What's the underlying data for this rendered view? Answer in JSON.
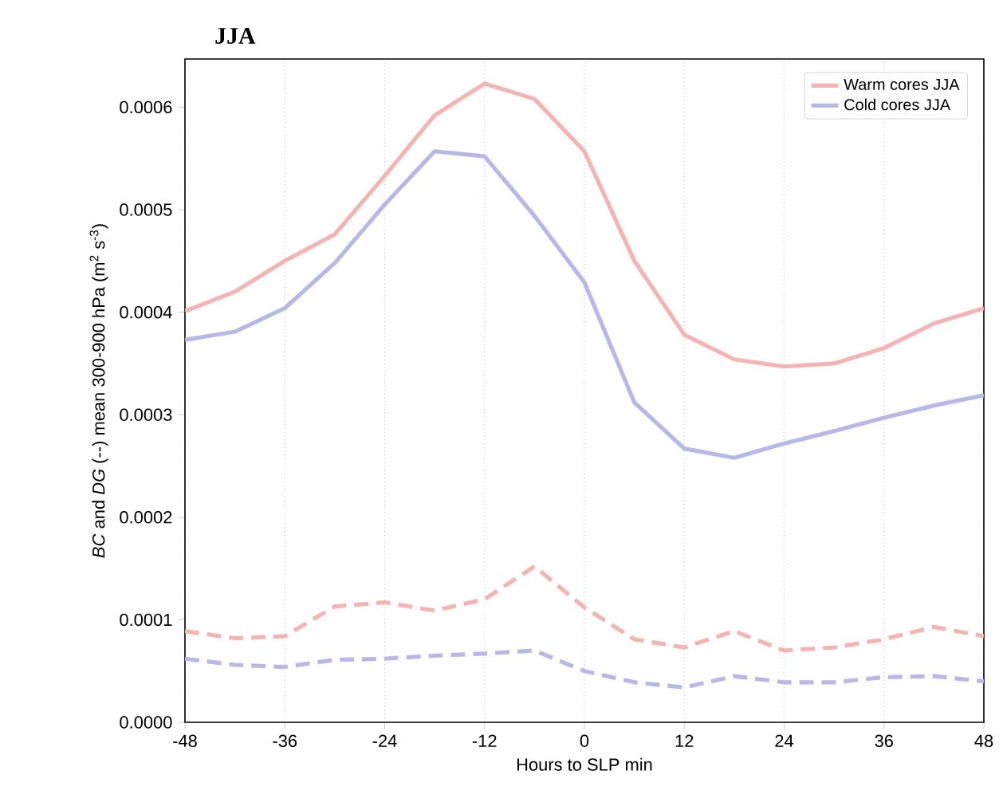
{
  "chart_data": {
    "type": "line",
    "title": "JJA",
    "xlabel": "Hours to SLP min",
    "ylabel": "*BC* and *DG* (--) mean 300-900 hPa (m$^{2}$ s$^{-3}$)",
    "x": [
      -48,
      -42,
      -36,
      -30,
      -24,
      -18,
      -12,
      -6,
      0,
      6,
      12,
      18,
      24,
      30,
      36,
      42,
      48
    ],
    "series": [
      {
        "name": "Warm cores JJA",
        "color": "#f4b4b4",
        "line_style": "solid",
        "values": [
          0.000401,
          0.00042,
          0.00045,
          0.000476,
          0.000533,
          0.000592,
          0.000623,
          0.000608,
          0.000557,
          0.00045,
          0.000378,
          0.000354,
          0.000347,
          0.00035,
          0.000365,
          0.000389,
          0.000404
        ]
      },
      {
        "name": "Cold cores JJA",
        "color": "#b8b8e8",
        "line_style": "solid",
        "values": [
          0.000373,
          0.000381,
          0.000404,
          0.000448,
          0.000505,
          0.000557,
          0.000552,
          0.000494,
          0.000429,
          0.000312,
          0.000267,
          0.000258,
          0.000272,
          0.000284,
          0.000297,
          0.000309,
          0.000319
        ]
      },
      {
        "color": "#f4b4b4",
        "line_style": "dashed",
        "values": [
          8.9e-05,
          8.2e-05,
          8.4e-05,
          0.000113,
          0.000117,
          0.000109,
          0.00012,
          0.000152,
          0.000112,
          8.1e-05,
          7.3e-05,
          8.9e-05,
          7e-05,
          7.3e-05,
          8.1e-05,
          9.3e-05,
          8.4e-05
        ]
      },
      {
        "color": "#b8b8e8",
        "line_style": "dashed",
        "values": [
          6.2e-05,
          5.6e-05,
          5.4e-05,
          6.1e-05,
          6.2e-05,
          6.5e-05,
          6.7e-05,
          7e-05,
          5e-05,
          3.9e-05,
          3.4e-05,
          4.5e-05,
          3.9e-05,
          3.9e-05,
          4.4e-05,
          4.5e-05,
          4e-05
        ]
      }
    ],
    "xlim": [
      -48,
      48
    ],
    "ylim": [
      0,
      0.000647
    ],
    "xticks": [
      -48,
      -36,
      -24,
      -12,
      0,
      12,
      24,
      36,
      48
    ],
    "yticks": [
      {
        "value": 0,
        "label": "0.0000"
      },
      {
        "value": 0.0001,
        "label": "0.0001"
      },
      {
        "value": 0.0002,
        "label": "0.0002"
      },
      {
        "value": 0.0003,
        "label": "0.0003"
      },
      {
        "value": 0.0004,
        "label": "0.0004"
      },
      {
        "value": 0.0005,
        "label": "0.0005"
      },
      {
        "value": 0.0006,
        "label": "0.0006"
      }
    ],
    "grid": "x",
    "legend": "top right",
    "marker": "none"
  }
}
